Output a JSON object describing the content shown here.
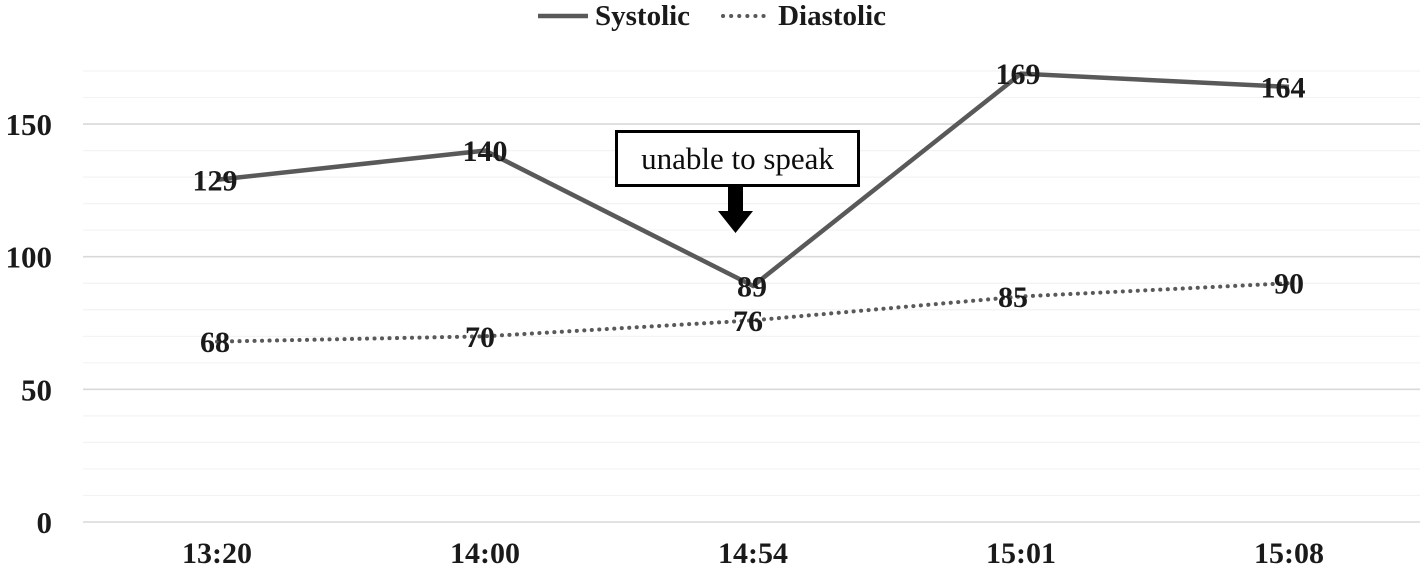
{
  "chart_data": {
    "type": "line",
    "title": "",
    "xlabel": "",
    "ylabel": "",
    "categories": [
      "13:20",
      "14:00",
      "14:54",
      "15:01",
      "15:08"
    ],
    "series": [
      {
        "name": "Systolic",
        "style": "solid",
        "values": [
          129,
          140,
          89,
          169,
          164
        ]
      },
      {
        "name": "Diastolic",
        "style": "dotted",
        "values": [
          68,
          70,
          76,
          85,
          90
        ]
      }
    ],
    "data_labels_visible": true,
    "y_axis": {
      "min": 0,
      "max": 170,
      "major_unit": 50,
      "minor_unit": 10,
      "tick_labels": [
        "0",
        "50",
        "100",
        "150"
      ]
    },
    "legend_position": "top",
    "grid": "horizontal-major-and-minor",
    "annotation": {
      "text": "unable to speak",
      "arrow": "down",
      "target_category": "14:54",
      "target_series": "Systolic"
    },
    "colors": {
      "line": "#595959",
      "text": "#1a1a1a",
      "major_grid": "#d9d9d9",
      "minor_grid": "#f3f3f3",
      "annotation_border": "#000000",
      "arrow": "#000000",
      "background": "#ffffff"
    }
  }
}
